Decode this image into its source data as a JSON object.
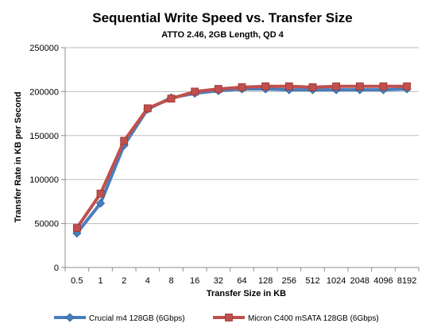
{
  "chart_data": {
    "type": "line",
    "title": "Sequential Write Speed vs. Transfer Size",
    "subtitle": "ATTO 2.46, 2GB Length, QD 4",
    "xlabel": "Transfer Size in KB",
    "ylabel": "Transfer Rate in KB per Second",
    "categories": [
      "0.5",
      "1",
      "2",
      "4",
      "8",
      "16",
      "32",
      "64",
      "128",
      "256",
      "512",
      "1024",
      "2048",
      "4096",
      "8192"
    ],
    "ylim": [
      0,
      250000
    ],
    "yticks": [
      0,
      50000,
      100000,
      150000,
      200000,
      250000
    ],
    "grid": true,
    "legend_position": "bottom",
    "series": [
      {
        "name": "Crucial m4 128GB (6Gbps)",
        "color": "#4a7ebb",
        "marker": "diamond",
        "values": [
          39000,
          73000,
          139000,
          180000,
          193000,
          198000,
          201000,
          203000,
          203000,
          202000,
          202000,
          202000,
          202000,
          202000,
          203000
        ]
      },
      {
        "name": "Micron C400 mSATA 128GB (6Gbps)",
        "color": "#c0504d",
        "marker": "square",
        "values": [
          45000,
          84000,
          144000,
          181000,
          192000,
          200000,
          203000,
          205000,
          206000,
          206000,
          205000,
          206000,
          206000,
          206000,
          206000
        ]
      }
    ]
  }
}
